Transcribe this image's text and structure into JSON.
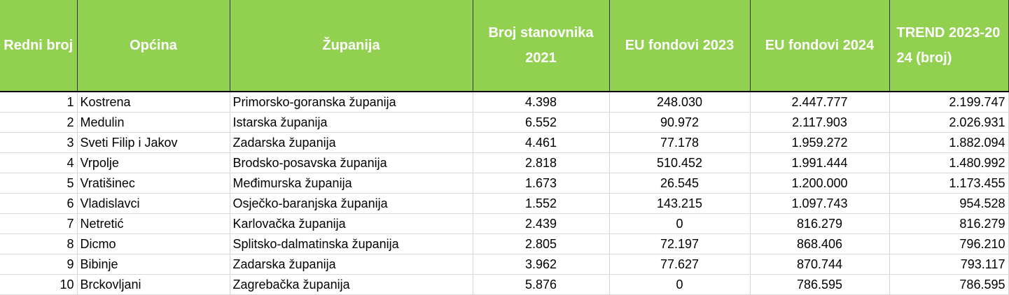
{
  "table": {
    "header": [
      "Redni broj",
      "Općina",
      "Županija",
      "Broj stanovnika 2021",
      "EU fondovi 2023",
      "EU fondovi 2024",
      "TREND 2023-2024 (broj)"
    ],
    "rows": [
      [
        1,
        "Kostrena",
        "Primorsko-goranska županija",
        "4.398",
        "248.030",
        "2.447.777",
        "2.199.747"
      ],
      [
        2,
        "Medulin",
        "Istarska županija",
        "6.552",
        "90.972",
        "2.117.903",
        "2.026.931"
      ],
      [
        3,
        "Sveti Filip i Jakov",
        "Zadarska županija",
        "4.461",
        "77.178",
        "1.959.272",
        "1.882.094"
      ],
      [
        4,
        "Vrpolje",
        "Brodsko-posavska županija",
        "2.818",
        "510.452",
        "1.991.444",
        "1.480.992"
      ],
      [
        5,
        "Vratišinec",
        "Međimurska županija",
        "1.673",
        "26.545",
        "1.200.000",
        "1.173.455"
      ],
      [
        6,
        "Vladislavci",
        "Osječko-baranjska županija",
        "1.552",
        "143.215",
        "1.097.743",
        "954.528"
      ],
      [
        7,
        "Netretić",
        "Karlovačka županija",
        "2.439",
        "0",
        "816.279",
        "816.279"
      ],
      [
        8,
        "Dicmo",
        "Splitsko-dalmatinska županija",
        "2.805",
        "72.197",
        "868.406",
        "796.210"
      ],
      [
        9,
        "Bibinje",
        "Zadarska županija",
        "3.962",
        "77.627",
        "870.744",
        "793.117"
      ],
      [
        10,
        "Brckovljani",
        "Zagrebačka županija",
        "5.876",
        "0",
        "786.595",
        "786.595"
      ]
    ]
  }
}
